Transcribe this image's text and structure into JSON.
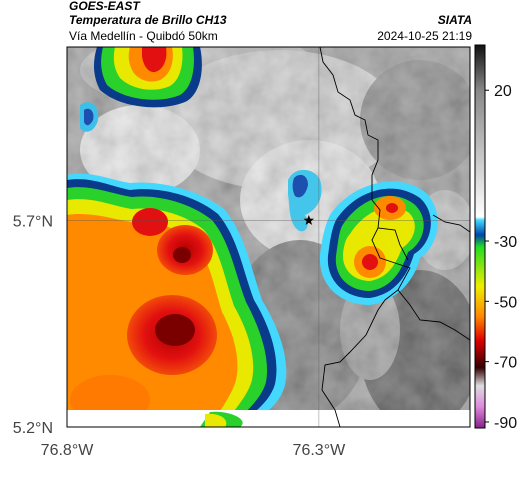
{
  "header": {
    "satellite": "GOES-EAST",
    "title": "Temperatura de Brillo CH13",
    "subtitle": "Vía Medellín - Quibdó 50km",
    "organization": "SIATA",
    "timestamp": "2024-10-25 21:19"
  },
  "map": {
    "lat_ticks": [
      {
        "value": 5.7,
        "label": "5.7°N"
      },
      {
        "value": 5.2,
        "label": "5.2°N"
      }
    ],
    "lon_ticks": [
      {
        "value": -76.8,
        "label": "76.8°W"
      },
      {
        "value": -76.3,
        "label": "76.3°W"
      }
    ],
    "extent": {
      "lon_min": -76.8,
      "lon_max": -76.0,
      "lat_min": 5.2,
      "lat_max": 6.12
    },
    "gridlines": true,
    "marker": {
      "symbol": "star",
      "lon": -76.32,
      "lat": 5.7
    },
    "coastline_color": "#000000"
  },
  "colorbar": {
    "labels": [
      {
        "value": 20,
        "text": "20"
      },
      {
        "value": -30,
        "text": "-30"
      },
      {
        "value": -50,
        "text": "-50"
      },
      {
        "value": -70,
        "text": "-70"
      },
      {
        "value": -90,
        "text": "-90"
      }
    ],
    "range": [
      -92,
      35
    ],
    "stops": [
      {
        "value": 35,
        "color": "#111111"
      },
      {
        "value": 20,
        "color": "#888888"
      },
      {
        "value": -22,
        "color": "#ffffff"
      },
      {
        "value": -23,
        "color": "#44ddff"
      },
      {
        "value": -28,
        "color": "#0044aa"
      },
      {
        "value": -32,
        "color": "#22dd22"
      },
      {
        "value": -45,
        "color": "#eeee00"
      },
      {
        "value": -55,
        "color": "#ff8800"
      },
      {
        "value": -63,
        "color": "#dd0000"
      },
      {
        "value": -72,
        "color": "#330000"
      },
      {
        "value": -78,
        "color": "#dddddd"
      },
      {
        "value": -85,
        "color": "#dd88dd"
      },
      {
        "value": -92,
        "color": "#882288"
      }
    ]
  }
}
